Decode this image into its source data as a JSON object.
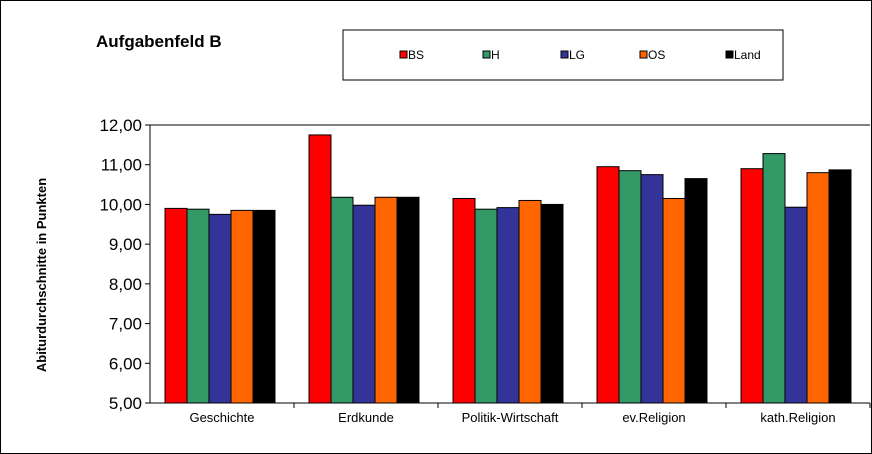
{
  "chart_data": {
    "type": "bar",
    "title": "Aufgabenfeld B",
    "ylabel": "Abiturdurchschnitte in Punkten",
    "xlabel": "",
    "categories": [
      "Geschichte",
      "Erdkunde",
      "Politik-Wirtschaft",
      "ev.Religion",
      "kath.Religion"
    ],
    "ylim": [
      5,
      12
    ],
    "yticks": [
      "5,00",
      "6,00",
      "7,00",
      "8,00",
      "9,00",
      "10,00",
      "11,00",
      "12,00"
    ],
    "grid": false,
    "legend_position": "top",
    "series": [
      {
        "name": "BS",
        "color": "#ff0000",
        "values": [
          9.9,
          11.75,
          10.15,
          10.95,
          10.9
        ]
      },
      {
        "name": "H",
        "color": "#339966",
        "values": [
          9.88,
          10.18,
          9.88,
          10.85,
          11.28
        ]
      },
      {
        "name": "LG",
        "color": "#333399",
        "values": [
          9.75,
          9.98,
          9.92,
          10.75,
          9.93
        ]
      },
      {
        "name": "OS",
        "color": "#ff6600",
        "values": [
          9.85,
          10.18,
          10.1,
          10.15,
          10.8
        ]
      },
      {
        "name": "Land",
        "color": "#000000",
        "values": [
          9.85,
          10.18,
          10.0,
          10.65,
          10.87
        ]
      }
    ]
  }
}
